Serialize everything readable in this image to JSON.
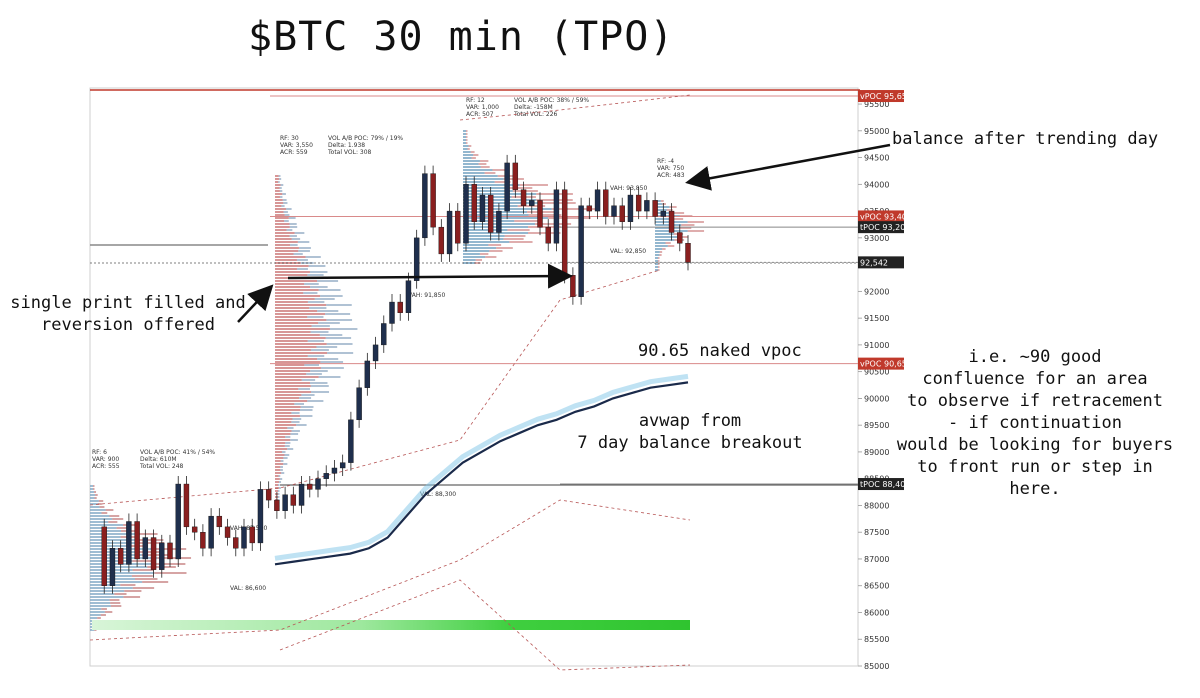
{
  "title": "$BTC 30 min (TPO)",
  "annotations": {
    "balance": "balance after trending day",
    "single_print": "single print filled and\nreversion offered",
    "naked_vpoc": "90.65 naked vpoc",
    "avwap": "avwap from\n7 day balance breakout",
    "confluence": "i.e. ~90 good\nconfluence for an area\nto observe if retracement\n- if continuation\nwould be looking for buyers\nto front run or step in\nhere."
  },
  "chart_data": {
    "type": "line",
    "title": "$BTC 30 min (TPO)",
    "xlabel": "",
    "ylabel": "",
    "ylim": [
      85000,
      95800
    ],
    "y_ticks": [
      "85000",
      "85500",
      "86000",
      "86500",
      "87000",
      "87500",
      "88000",
      "88500",
      "89000",
      "89500",
      "90000",
      "90500",
      "91000",
      "91500",
      "92000",
      "92500",
      "93000",
      "93500",
      "94000",
      "94500",
      "95000",
      "95500"
    ],
    "price_tags": [
      {
        "label": "vPOC",
        "value": "95,650",
        "price": 95650,
        "color": "#c0392b"
      },
      {
        "label": "vPOC",
        "value": "93,400",
        "price": 93400,
        "color": "#c0392b"
      },
      {
        "label": "tPOC",
        "value": "93,200",
        "price": 93200,
        "color": "#222222"
      },
      {
        "label": "",
        "value": "92,542",
        "price": 92542,
        "color": "#222222"
      },
      {
        "label": "vPOC",
        "value": "90,650",
        "price": 90650,
        "color": "#c0392b"
      },
      {
        "label": "tPOC",
        "value": "88,400",
        "price": 88400,
        "color": "#222222"
      }
    ],
    "price_path": [
      87600,
      86500,
      87200,
      86900,
      87700,
      87000,
      87400,
      86800,
      87300,
      87000,
      88400,
      87600,
      87500,
      87200,
      87800,
      87600,
      87400,
      87200,
      87600,
      87300,
      88300,
      88100,
      87900,
      88200,
      88000,
      88400,
      88300,
      88500,
      88600,
      88700,
      88800,
      89600,
      90200,
      90700,
      91000,
      91400,
      91800,
      91600,
      92200,
      93000,
      94200,
      93200,
      92700,
      93500,
      92900,
      94000,
      93300,
      93800,
      93100,
      93500,
      94400,
      93900,
      93600,
      93700,
      93200,
      92900,
      93900,
      92300,
      91900,
      93600,
      93500,
      93900,
      93400,
      93600,
      93300,
      93800,
      93500,
      93700,
      93400,
      93500,
      93100,
      92900,
      92542
    ],
    "avwap_path": [
      86900,
      86950,
      87000,
      87050,
      87100,
      87200,
      87400,
      87800,
      88200,
      88500,
      88800,
      89000,
      89200,
      89350,
      89500,
      89600,
      89750,
      89850,
      90000,
      90100,
      90200,
      90250,
      90300
    ],
    "profiles": [
      {
        "label_lines": [
          "RF: 6",
          "VAR: 900",
          "ACR: 555"
        ],
        "stats": [
          "VOL A/B POC: 41% / 54%",
          "Delta: 610M",
          "Total VOL: 248"
        ],
        "vah": "VAH: 87,500",
        "val": "VAL: 86,600"
      },
      {
        "label_lines": [
          "RF: 30",
          "VAR: 3,550",
          "ACR: 559"
        ],
        "stats": [
          "VOL A/B POC: 79% / 19%",
          "Delta: 1.938",
          "Total VOL: 308"
        ],
        "vah": "VAH: 91,850",
        "val": "VAL: 88,300"
      },
      {
        "label_lines": [
          "RF: 12",
          "VAR: 1,000",
          "ACR: 507"
        ],
        "stats": [
          "VOL A/B POC: 38% / 59%",
          "Delta: -158M",
          "Total VOL: 226"
        ],
        "vah": "VAH: 93,850",
        "val": "VAL: 92,850"
      },
      {
        "label_lines": [
          "RF: -4",
          "VAR: 750",
          "ACR: 483"
        ],
        "stats": [],
        "vah": "",
        "val": ""
      }
    ]
  }
}
